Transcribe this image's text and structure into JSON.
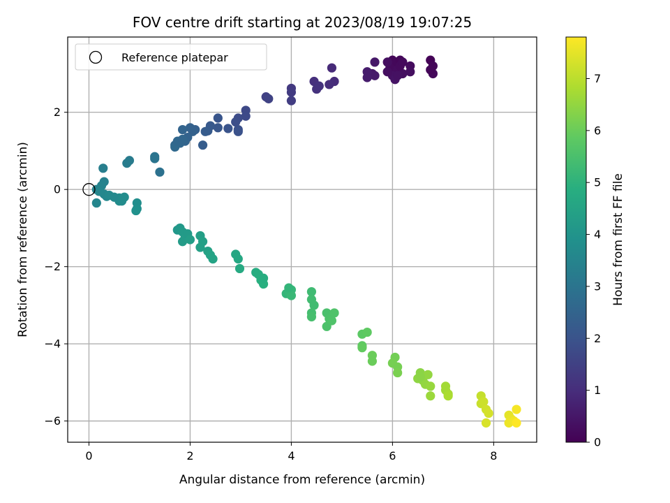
{
  "chart_data": {
    "type": "scatter",
    "title": "FOV centre drift starting at 2023/08/19 19:07:25",
    "xlabel": "Angular distance from reference (arcmin)",
    "ylabel": "Rotation from reference (arcmin)",
    "xlim": [
      -0.42,
      8.85
    ],
    "ylim": [
      -6.55,
      3.95
    ],
    "xticks": [
      0,
      2,
      4,
      6,
      8
    ],
    "yticks": [
      -6,
      -4,
      -2,
      0,
      2
    ],
    "grid": true,
    "legend": {
      "placement": "upper-left",
      "entries": [
        "Reference platepar"
      ]
    },
    "reference_point": {
      "x": 0,
      "y": 0,
      "label": "Reference platepar"
    },
    "colorbar": {
      "label": "Hours from first FF file",
      "range": [
        0,
        7.8
      ],
      "ticks": [
        0,
        1,
        2,
        3,
        4,
        5,
        6,
        7
      ],
      "colormap": "viridis"
    },
    "points": [
      {
        "x": 6.0,
        "y": 3.35,
        "t": 0.1
      },
      {
        "x": 6.05,
        "y": 3.25,
        "t": 0.15
      },
      {
        "x": 5.95,
        "y": 3.15,
        "t": 0.2
      },
      {
        "x": 6.1,
        "y": 3.1,
        "t": 0.25
      },
      {
        "x": 6.15,
        "y": 3.35,
        "t": 0.1
      },
      {
        "x": 5.9,
        "y": 3.3,
        "t": 0.3
      },
      {
        "x": 6.0,
        "y": 2.95,
        "t": 0.35
      },
      {
        "x": 6.05,
        "y": 2.85,
        "t": 0.4
      },
      {
        "x": 6.2,
        "y": 3.0,
        "t": 0.3
      },
      {
        "x": 6.35,
        "y": 3.2,
        "t": 0.25
      },
      {
        "x": 6.35,
        "y": 3.05,
        "t": 0.3
      },
      {
        "x": 6.75,
        "y": 3.35,
        "t": 0.05
      },
      {
        "x": 6.8,
        "y": 3.2,
        "t": 0.1
      },
      {
        "x": 6.8,
        "y": 3.0,
        "t": 0.15
      },
      {
        "x": 6.75,
        "y": 3.1,
        "t": 0.1
      },
      {
        "x": 5.65,
        "y": 3.3,
        "t": 0.5
      },
      {
        "x": 5.6,
        "y": 3.0,
        "t": 0.5
      },
      {
        "x": 5.65,
        "y": 2.95,
        "t": 0.55
      },
      {
        "x": 5.5,
        "y": 3.05,
        "t": 0.6
      },
      {
        "x": 5.5,
        "y": 2.9,
        "t": 0.6
      },
      {
        "x": 6.15,
        "y": 3.2,
        "t": 0.2
      },
      {
        "x": 6.2,
        "y": 3.3,
        "t": 0.2
      },
      {
        "x": 5.9,
        "y": 3.05,
        "t": 0.3
      },
      {
        "x": 6.1,
        "y": 2.95,
        "t": 0.35
      },
      {
        "x": 4.8,
        "y": 3.15,
        "t": 0.9
      },
      {
        "x": 4.85,
        "y": 2.8,
        "t": 0.95
      },
      {
        "x": 4.75,
        "y": 2.72,
        "t": 1.0
      },
      {
        "x": 4.45,
        "y": 2.8,
        "t": 1.05
      },
      {
        "x": 4.55,
        "y": 2.68,
        "t": 1.1
      },
      {
        "x": 4.5,
        "y": 2.6,
        "t": 1.1
      },
      {
        "x": 4.0,
        "y": 2.62,
        "t": 1.3
      },
      {
        "x": 4.0,
        "y": 2.52,
        "t": 1.35
      },
      {
        "x": 4.0,
        "y": 2.3,
        "t": 1.4
      },
      {
        "x": 3.5,
        "y": 2.4,
        "t": 1.5
      },
      {
        "x": 3.55,
        "y": 2.35,
        "t": 1.55
      },
      {
        "x": 3.1,
        "y": 2.05,
        "t": 1.7
      },
      {
        "x": 3.1,
        "y": 1.9,
        "t": 1.75
      },
      {
        "x": 2.95,
        "y": 1.85,
        "t": 1.8
      },
      {
        "x": 2.9,
        "y": 1.75,
        "t": 1.85
      },
      {
        "x": 2.95,
        "y": 1.55,
        "t": 1.9
      },
      {
        "x": 2.95,
        "y": 1.5,
        "t": 1.95
      },
      {
        "x": 2.75,
        "y": 1.58,
        "t": 2.0
      },
      {
        "x": 2.55,
        "y": 1.85,
        "t": 2.05
      },
      {
        "x": 2.55,
        "y": 1.6,
        "t": 2.1
      },
      {
        "x": 2.4,
        "y": 1.65,
        "t": 2.15
      },
      {
        "x": 2.35,
        "y": 1.52,
        "t": 2.2
      },
      {
        "x": 2.3,
        "y": 1.5,
        "t": 2.25
      },
      {
        "x": 2.25,
        "y": 1.15,
        "t": 2.3
      },
      {
        "x": 2.1,
        "y": 1.55,
        "t": 2.35
      },
      {
        "x": 2.05,
        "y": 1.5,
        "t": 2.4
      },
      {
        "x": 2.0,
        "y": 1.6,
        "t": 2.4
      },
      {
        "x": 1.95,
        "y": 1.35,
        "t": 2.45
      },
      {
        "x": 1.9,
        "y": 1.25,
        "t": 2.5
      },
      {
        "x": 1.85,
        "y": 1.55,
        "t": 2.5
      },
      {
        "x": 1.8,
        "y": 1.2,
        "t": 2.55
      },
      {
        "x": 1.7,
        "y": 1.15,
        "t": 2.6
      },
      {
        "x": 1.7,
        "y": 1.1,
        "t": 2.65
      },
      {
        "x": 1.75,
        "y": 1.25,
        "t": 2.6
      },
      {
        "x": 1.85,
        "y": 1.3,
        "t": 2.55
      },
      {
        "x": 1.4,
        "y": 0.45,
        "t": 2.9
      },
      {
        "x": 1.3,
        "y": 0.8,
        "t": 3.0
      },
      {
        "x": 1.3,
        "y": 0.85,
        "t": 3.0
      },
      {
        "x": 0.8,
        "y": 0.75,
        "t": 3.2
      },
      {
        "x": 0.75,
        "y": 0.68,
        "t": 3.25
      },
      {
        "x": 0.28,
        "y": 0.55,
        "t": 3.3
      },
      {
        "x": 0.3,
        "y": 0.2,
        "t": 3.4
      },
      {
        "x": 0.25,
        "y": 0.1,
        "t": 3.45
      },
      {
        "x": 0.15,
        "y": 0.0,
        "t": 3.5
      },
      {
        "x": 0.2,
        "y": -0.05,
        "t": 3.55
      },
      {
        "x": 0.3,
        "y": -0.12,
        "t": 3.6
      },
      {
        "x": 0.35,
        "y": -0.18,
        "t": 3.6
      },
      {
        "x": 0.15,
        "y": -0.35,
        "t": 3.55
      },
      {
        "x": 0.4,
        "y": -0.15,
        "t": 3.65
      },
      {
        "x": 0.6,
        "y": -0.22,
        "t": 3.7
      },
      {
        "x": 0.65,
        "y": -0.3,
        "t": 3.7
      },
      {
        "x": 0.7,
        "y": -0.2,
        "t": 3.75
      },
      {
        "x": 0.6,
        "y": -0.3,
        "t": 3.75
      },
      {
        "x": 0.95,
        "y": -0.35,
        "t": 3.8
      },
      {
        "x": 0.95,
        "y": -0.5,
        "t": 3.85
      },
      {
        "x": 0.93,
        "y": -0.55,
        "t": 3.9
      },
      {
        "x": 0.5,
        "y": -0.2,
        "t": 3.65
      },
      {
        "x": 1.75,
        "y": -1.05,
        "t": 4.1
      },
      {
        "x": 1.8,
        "y": -1.0,
        "t": 4.15
      },
      {
        "x": 1.85,
        "y": -1.1,
        "t": 4.2
      },
      {
        "x": 1.9,
        "y": -1.25,
        "t": 4.25
      },
      {
        "x": 1.85,
        "y": -1.35,
        "t": 4.25
      },
      {
        "x": 1.95,
        "y": -1.15,
        "t": 4.2
      },
      {
        "x": 2.0,
        "y": -1.3,
        "t": 4.3
      },
      {
        "x": 2.2,
        "y": -1.2,
        "t": 4.35
      },
      {
        "x": 2.25,
        "y": -1.35,
        "t": 4.4
      },
      {
        "x": 2.2,
        "y": -1.5,
        "t": 4.4
      },
      {
        "x": 2.35,
        "y": -1.6,
        "t": 4.45
      },
      {
        "x": 2.4,
        "y": -1.7,
        "t": 4.5
      },
      {
        "x": 2.45,
        "y": -1.8,
        "t": 4.5
      },
      {
        "x": 2.9,
        "y": -1.68,
        "t": 4.6
      },
      {
        "x": 2.95,
        "y": -1.8,
        "t": 4.65
      },
      {
        "x": 2.98,
        "y": -2.05,
        "t": 4.7
      },
      {
        "x": 3.3,
        "y": -2.15,
        "t": 4.8
      },
      {
        "x": 3.35,
        "y": -2.2,
        "t": 4.85
      },
      {
        "x": 3.4,
        "y": -2.35,
        "t": 4.9
      },
      {
        "x": 3.45,
        "y": -2.45,
        "t": 4.9
      },
      {
        "x": 3.45,
        "y": -2.3,
        "t": 4.85
      },
      {
        "x": 3.9,
        "y": -2.7,
        "t": 5.1
      },
      {
        "x": 3.95,
        "y": -2.65,
        "t": 5.15
      },
      {
        "x": 4.0,
        "y": -2.6,
        "t": 5.15
      },
      {
        "x": 4.0,
        "y": -2.75,
        "t": 5.2
      },
      {
        "x": 3.95,
        "y": -2.55,
        "t": 5.1
      },
      {
        "x": 4.4,
        "y": -2.65,
        "t": 5.3
      },
      {
        "x": 4.4,
        "y": -2.85,
        "t": 5.35
      },
      {
        "x": 4.45,
        "y": -3.0,
        "t": 5.35
      },
      {
        "x": 4.4,
        "y": -3.2,
        "t": 5.4
      },
      {
        "x": 4.4,
        "y": -3.3,
        "t": 5.45
      },
      {
        "x": 4.7,
        "y": -3.2,
        "t": 5.5
      },
      {
        "x": 4.75,
        "y": -3.35,
        "t": 5.55
      },
      {
        "x": 4.7,
        "y": -3.55,
        "t": 5.55
      },
      {
        "x": 4.8,
        "y": -3.4,
        "t": 5.6
      },
      {
        "x": 4.85,
        "y": -3.2,
        "t": 5.6
      },
      {
        "x": 5.4,
        "y": -3.75,
        "t": 5.8
      },
      {
        "x": 5.5,
        "y": -3.7,
        "t": 5.85
      },
      {
        "x": 5.4,
        "y": -4.05,
        "t": 5.85
      },
      {
        "x": 5.4,
        "y": -4.1,
        "t": 5.9
      },
      {
        "x": 5.6,
        "y": -4.3,
        "t": 6.0
      },
      {
        "x": 5.6,
        "y": -4.45,
        "t": 6.0
      },
      {
        "x": 6.05,
        "y": -4.35,
        "t": 6.1
      },
      {
        "x": 6.0,
        "y": -4.5,
        "t": 6.15
      },
      {
        "x": 6.1,
        "y": -4.6,
        "t": 6.15
      },
      {
        "x": 6.1,
        "y": -4.75,
        "t": 6.2
      },
      {
        "x": 6.55,
        "y": -4.75,
        "t": 6.4
      },
      {
        "x": 6.5,
        "y": -4.9,
        "t": 6.45
      },
      {
        "x": 6.6,
        "y": -4.95,
        "t": 6.45
      },
      {
        "x": 6.7,
        "y": -4.8,
        "t": 6.5
      },
      {
        "x": 6.65,
        "y": -5.05,
        "t": 6.5
      },
      {
        "x": 6.75,
        "y": -5.1,
        "t": 6.55
      },
      {
        "x": 6.75,
        "y": -5.35,
        "t": 6.6
      },
      {
        "x": 7.05,
        "y": -5.1,
        "t": 6.7
      },
      {
        "x": 7.05,
        "y": -5.2,
        "t": 6.7
      },
      {
        "x": 7.1,
        "y": -5.3,
        "t": 6.75
      },
      {
        "x": 7.1,
        "y": -5.35,
        "t": 6.8
      },
      {
        "x": 6.55,
        "y": -4.85,
        "t": 6.4
      },
      {
        "x": 7.75,
        "y": -5.35,
        "t": 7.1
      },
      {
        "x": 7.75,
        "y": -5.55,
        "t": 7.15
      },
      {
        "x": 7.8,
        "y": -5.5,
        "t": 7.2
      },
      {
        "x": 7.85,
        "y": -5.7,
        "t": 7.25
      },
      {
        "x": 7.9,
        "y": -5.8,
        "t": 7.3
      },
      {
        "x": 7.85,
        "y": -6.05,
        "t": 7.35
      },
      {
        "x": 8.3,
        "y": -5.85,
        "t": 7.5
      },
      {
        "x": 8.35,
        "y": -5.95,
        "t": 7.55
      },
      {
        "x": 8.3,
        "y": -6.05,
        "t": 7.6
      },
      {
        "x": 8.4,
        "y": -6.0,
        "t": 7.65
      },
      {
        "x": 8.45,
        "y": -5.7,
        "t": 7.7
      },
      {
        "x": 8.45,
        "y": -6.05,
        "t": 7.8
      }
    ]
  }
}
